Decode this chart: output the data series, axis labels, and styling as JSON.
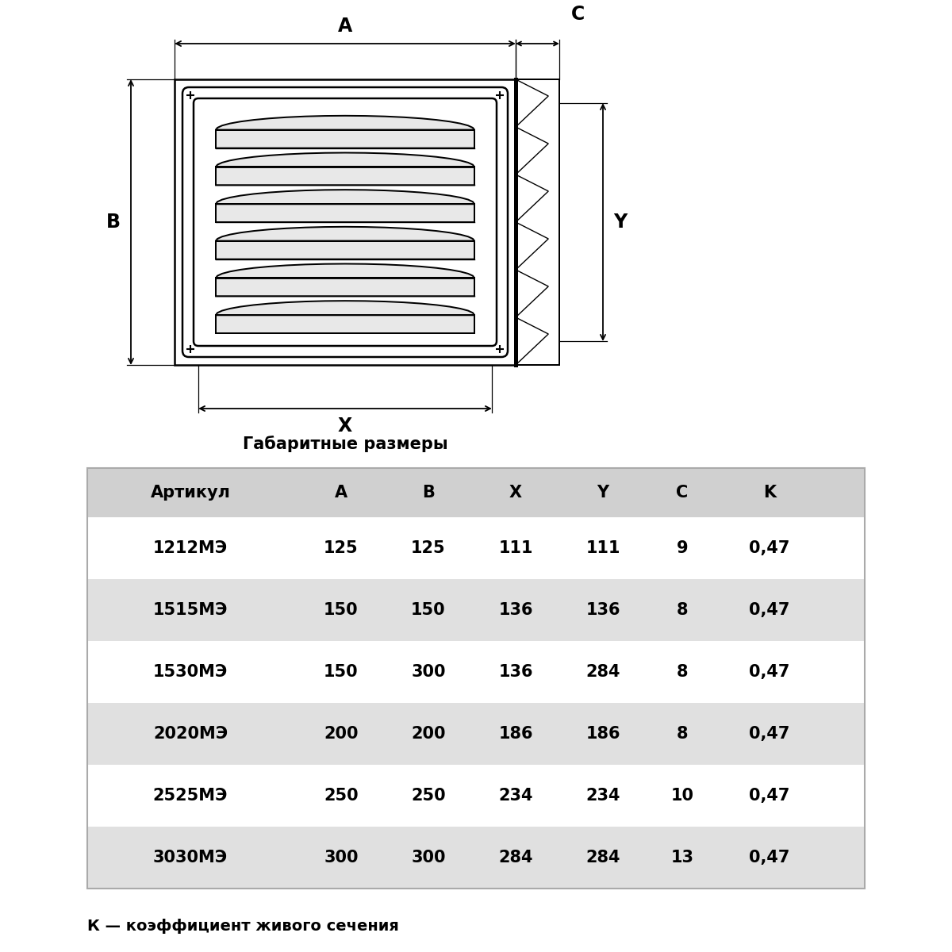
{
  "title_diagram": "Габаритные размеры",
  "table_headers": [
    "Артикул",
    "A",
    "B",
    "X",
    "Y",
    "C",
    "K"
  ],
  "table_rows": [
    [
      "1212МЭ",
      "125",
      "125",
      "111",
      "111",
      "9",
      "0,47"
    ],
    [
      "1515МЭ",
      "150",
      "150",
      "136",
      "136",
      "8",
      "0,47"
    ],
    [
      "1530МЭ",
      "150",
      "300",
      "136",
      "284",
      "8",
      "0,47"
    ],
    [
      "2020МЭ",
      "200",
      "200",
      "186",
      "186",
      "8",
      "0,47"
    ],
    [
      "2525МЭ",
      "250",
      "250",
      "234",
      "234",
      "10",
      "0,47"
    ],
    [
      "3030МЭ",
      "300",
      "300",
      "284",
      "284",
      "13",
      "0,47"
    ]
  ],
  "row_colors": [
    "#ffffff",
    "#e0e0e0",
    "#ffffff",
    "#e0e0e0",
    "#ffffff",
    "#e0e0e0"
  ],
  "header_color": "#d0d0d0",
  "footer_note": "К — коэффициент живого сечения",
  "bg_color": "#ffffff",
  "label_A": "A",
  "label_B": "B",
  "label_X": "X",
  "label_Y": "Y",
  "label_C": "C",
  "diagram_line_color": "#000000",
  "num_louvers": 6
}
